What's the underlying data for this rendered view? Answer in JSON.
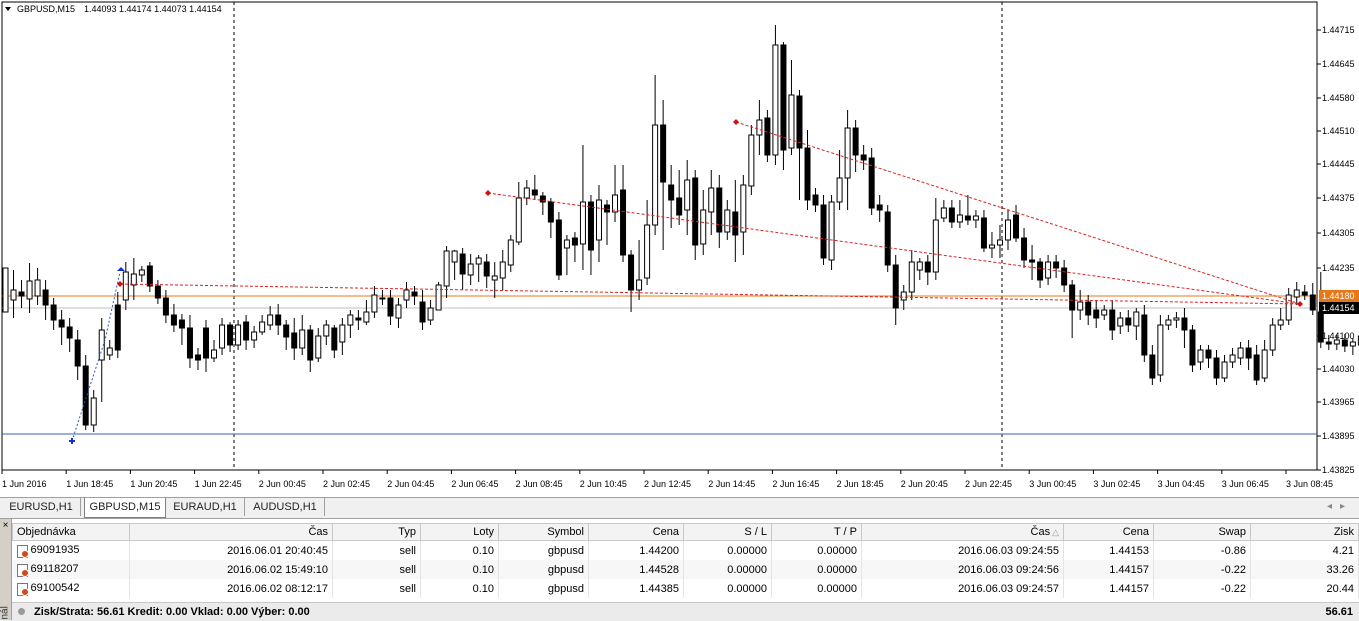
{
  "chart": {
    "symbol_info": "GBPUSD,M15",
    "ohlc": "1.44093 1.44174 1.44073 1.44154",
    "price_levels": [
      "1.44715",
      "1.44645",
      "1.44580",
      "1.44510",
      "1.44445",
      "1.44375",
      "1.44305",
      "1.44235",
      "1.44180",
      "1.44154",
      "1.44100",
      "1.44030",
      "1.43965",
      "1.43895",
      "1.43825"
    ],
    "current_price_label": "1.44154",
    "order_line_label": "1.44180",
    "time_labels": [
      "1 Jun 2016",
      "1 Jun 18:45",
      "1 Jun 20:45",
      "1 Jun 22:45",
      "2 Jun 00:45",
      "2 Jun 02:45",
      "2 Jun 04:45",
      "2 Jun 06:45",
      "2 Jun 08:45",
      "2 Jun 10:45",
      "2 Jun 12:45",
      "2 Jun 14:45",
      "2 Jun 16:45",
      "2 Jun 18:45",
      "2 Jun 20:45",
      "2 Jun 22:45",
      "3 Jun 00:45",
      "3 Jun 02:45",
      "3 Jun 04:45",
      "3 Jun 06:45",
      "3 Jun 08:45"
    ],
    "colors": {
      "bull_body": "#ffffff",
      "bear_body": "#000000",
      "orange_line": "#e67817",
      "blue_line": "#3a5fbf",
      "order_dashed": "#e02020",
      "price_tag": "#000000"
    }
  },
  "tabs": [
    {
      "label": "EURUSD,H1",
      "active": false
    },
    {
      "label": "GBPUSD,M15",
      "active": true
    },
    {
      "label": "EURAUD,H1",
      "active": false
    },
    {
      "label": "AUDUSD,H1",
      "active": false
    }
  ],
  "terminal": {
    "side_label": "nál",
    "columns": [
      "Objednávka",
      "Čas",
      "Typ",
      "Loty",
      "Symbol",
      "Cena",
      "S / L",
      "T / P",
      "Čas",
      "Cena",
      "Swap",
      "Zisk"
    ],
    "rows": [
      [
        "69091935",
        "2016.06.01 20:40:45",
        "sell",
        "0.10",
        "gbpusd",
        "1.44200",
        "0.00000",
        "0.00000",
        "2016.06.03 09:24:55",
        "1.44153",
        "-0.86",
        "4.21"
      ],
      [
        "69118207",
        "2016.06.02 15:49:10",
        "sell",
        "0.10",
        "gbpusd",
        "1.44528",
        "0.00000",
        "0.00000",
        "2016.06.03 09:24:56",
        "1.44157",
        "-0.22",
        "33.26"
      ],
      [
        "69100542",
        "2016.06.02 08:12:17",
        "sell",
        "0.10",
        "gbpusd",
        "1.44385",
        "0.00000",
        "0.00000",
        "2016.06.03 09:24:57",
        "1.44157",
        "-0.22",
        "20.44"
      ]
    ],
    "summary": "Zisk/Strata: 56.61  Kredit: 0.00  Vklad: 0.00  Výber: 0.00",
    "total": "56.61"
  }
}
